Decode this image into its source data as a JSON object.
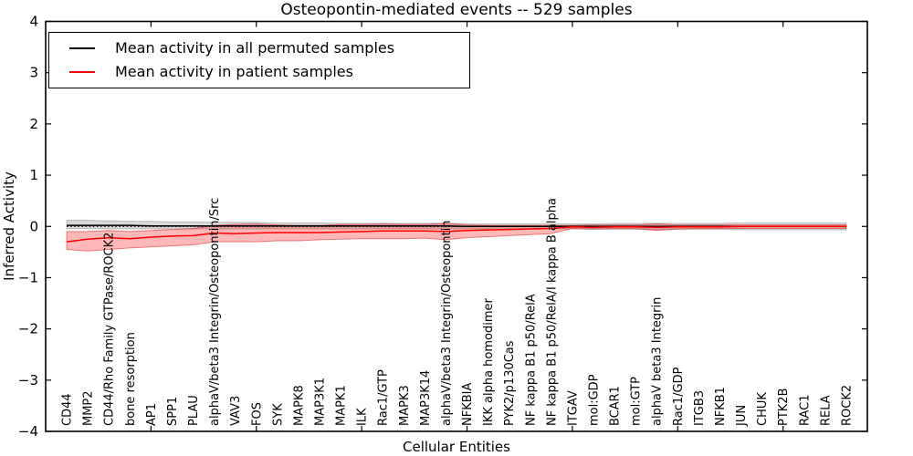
{
  "chart_data": {
    "type": "line",
    "title": "Osteopontin-mediated events -- 529 samples",
    "xlabel": "Cellular Entities",
    "ylabel": "Inferred Activity",
    "ylim": [
      -4,
      4
    ],
    "yticks": [
      4,
      3,
      2,
      1,
      0,
      -1,
      -2,
      -3,
      -4
    ],
    "grid": false,
    "legend_position": "upper left",
    "zero_line_style": "dotted",
    "x_tick_every": 5,
    "categories": [
      "CD44",
      "MMP2",
      "CD44/Rho Family GTPase/ROCK2",
      "bone resorption",
      "AP1",
      "SPP1",
      "PLAU",
      "alphaV/beta3 Integrin/Osteopontin/Src",
      "VAV3",
      "FOS",
      "SYK",
      "MAPK8",
      "MAP3K1",
      "MAPK1",
      "ILK",
      "Rac1/GTP",
      "MAPK3",
      "MAP3K14",
      "alphaV/beta3 Integrin/Osteopontin",
      "NFKBIA",
      "IKK alpha homodimer",
      "PYK2/p130Cas",
      "NF kappa B1 p50/RelA",
      "NF kappa B1 p50/RelA/I kappa B alpha",
      "ITGAV",
      "mol:GDP",
      "BCAR1",
      "mol:GTP",
      "alphaV beta3 Integrin",
      "Rac1/GDP",
      "ITGB3",
      "NFKB1",
      "JUN",
      "CHUK",
      "PTK2B",
      "RAC1",
      "RELA",
      "ROCK2"
    ],
    "series": [
      {
        "name": "Mean activity in all permuted samples",
        "color": "#000000",
        "band_fill": "rgba(0,0,0,0.15)",
        "band_edge": "rgba(0,0,0,0.2)",
        "values": [
          0.02,
          0.02,
          0.02,
          0.02,
          0.01,
          0.01,
          0.01,
          0.01,
          0.01,
          0.01,
          0.01,
          0.01,
          0.01,
          0.01,
          0.01,
          0.01,
          0.01,
          0.01,
          0.01,
          0,
          0,
          0,
          0,
          0,
          0,
          0,
          0,
          0,
          0,
          0,
          0,
          0,
          0,
          0,
          0,
          0,
          0,
          0
        ],
        "band_upper": [
          0.12,
          0.12,
          0.11,
          0.1,
          0.1,
          0.09,
          0.09,
          0.08,
          0.08,
          0.08,
          0.07,
          0.07,
          0.07,
          0.06,
          0.06,
          0.06,
          0.06,
          0.06,
          0.06,
          0.05,
          0.05,
          0.05,
          0.05,
          0.05,
          0.05,
          0.05,
          0.06,
          0.06,
          0.06,
          0.06,
          0.06,
          0.06,
          0.07,
          0.07,
          0.07,
          0.07,
          0.07,
          0.07
        ],
        "band_lower": [
          -0.04,
          -0.04,
          -0.05,
          -0.05,
          -0.05,
          -0.05,
          -0.05,
          -0.05,
          -0.05,
          -0.05,
          -0.05,
          -0.05,
          -0.05,
          -0.05,
          -0.05,
          -0.05,
          -0.05,
          -0.05,
          -0.05,
          -0.05,
          -0.05,
          -0.05,
          -0.05,
          -0.05,
          -0.05,
          -0.06,
          -0.06,
          -0.06,
          -0.06,
          -0.06,
          -0.06,
          -0.06,
          -0.07,
          -0.07,
          -0.07,
          -0.07,
          -0.07,
          -0.07
        ]
      },
      {
        "name": "Mean activity in patient samples",
        "color": "#ff0000",
        "band_fill": "rgba(255,0,0,0.28)",
        "band_edge": "rgba(210,0,0,0.45)",
        "values": [
          -0.3,
          -0.25,
          -0.22,
          -0.24,
          -0.21,
          -0.19,
          -0.18,
          -0.13,
          -0.14,
          -0.13,
          -0.12,
          -0.12,
          -0.12,
          -0.11,
          -0.1,
          -0.09,
          -0.09,
          -0.09,
          -0.1,
          -0.08,
          -0.07,
          -0.06,
          -0.05,
          -0.04,
          -0.01,
          -0.02,
          -0.01,
          -0.01,
          -0.02,
          -0.01,
          -0.01,
          -0.01,
          0,
          0,
          0,
          0,
          0,
          0
        ],
        "band_upper": [
          -0.1,
          -0.1,
          -0.08,
          -0.1,
          -0.08,
          -0.06,
          -0.04,
          0.02,
          0.04,
          0.05,
          0.03,
          0.02,
          0.02,
          0.04,
          0.04,
          0.05,
          0.04,
          0.04,
          0.06,
          0.03,
          0.02,
          0.02,
          0.02,
          0.02,
          0.02,
          0.03,
          0.03,
          0.03,
          0.05,
          0.03,
          0.03,
          0.03,
          0.03,
          0.03,
          0.03,
          0.03,
          0.03,
          0.03
        ],
        "band_lower": [
          -0.45,
          -0.48,
          -0.45,
          -0.42,
          -0.4,
          -0.38,
          -0.36,
          -0.3,
          -0.3,
          -0.3,
          -0.28,
          -0.28,
          -0.26,
          -0.25,
          -0.24,
          -0.24,
          -0.24,
          -0.23,
          -0.26,
          -0.22,
          -0.2,
          -0.18,
          -0.16,
          -0.14,
          -0.04,
          -0.05,
          -0.04,
          -0.04,
          -0.08,
          -0.05,
          -0.04,
          -0.04,
          -0.04,
          -0.04,
          -0.04,
          -0.04,
          -0.04,
          -0.04
        ]
      }
    ]
  }
}
